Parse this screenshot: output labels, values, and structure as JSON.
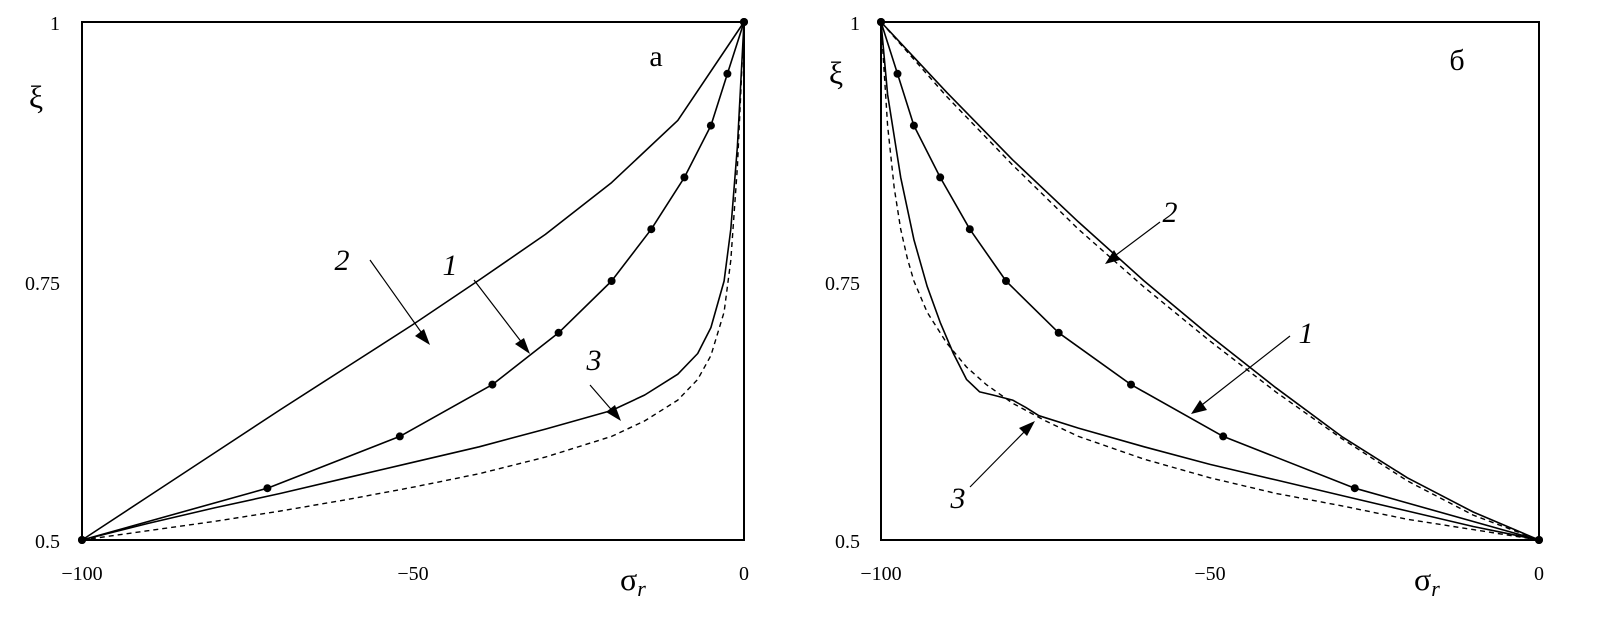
{
  "chart_data": [
    {
      "type": "line",
      "panel_label": "а",
      "xlabel": "σ",
      "xlabel_sub": "r",
      "ylabel": "ξ",
      "xlim": [
        -100,
        0
      ],
      "ylim": [
        0.5,
        1
      ],
      "x_ticks": [
        "−100",
        "−50",
        "0"
      ],
      "y_ticks": [
        "0.5",
        "0.75",
        "1"
      ],
      "grid": false,
      "series": [
        {
          "name": "2",
          "style": "solid",
          "markers": false,
          "x": [
            -100,
            -90,
            -80,
            -70,
            -60,
            -50,
            -40,
            -30,
            -20,
            -10,
            0
          ],
          "y": [
            0.5,
            0.542,
            0.584,
            0.626,
            0.667,
            0.708,
            0.751,
            0.795,
            0.845,
            0.905,
            1.0
          ]
        },
        {
          "name": "1",
          "style": "solid",
          "markers": true,
          "x": [
            -100,
            -72,
            -52,
            -38,
            -28,
            -20,
            -14,
            -9,
            -5,
            -2.5,
            0
          ],
          "y": [
            0.5,
            0.55,
            0.6,
            0.65,
            0.7,
            0.75,
            0.8,
            0.85,
            0.9,
            0.95,
            1.0
          ]
        },
        {
          "name": "3",
          "style": "solid",
          "markers": false,
          "x": [
            -100,
            -90,
            -80,
            -70,
            -60,
            -50,
            -40,
            -30,
            -20,
            -15,
            -10,
            -7,
            -5,
            -3,
            -2,
            -1,
            0
          ],
          "y": [
            0.5,
            0.516,
            0.531,
            0.545,
            0.56,
            0.575,
            0.59,
            0.607,
            0.625,
            0.64,
            0.66,
            0.68,
            0.705,
            0.75,
            0.8,
            0.88,
            1.0
          ]
        },
        {
          "name": "",
          "style": "dashed",
          "markers": false,
          "x": [
            -100,
            -90,
            -80,
            -70,
            -60,
            -50,
            -40,
            -30,
            -20,
            -15,
            -10,
            -7,
            -5,
            -3,
            -2,
            -1,
            0
          ],
          "y": [
            0.5,
            0.509,
            0.518,
            0.528,
            0.539,
            0.551,
            0.564,
            0.58,
            0.6,
            0.615,
            0.635,
            0.655,
            0.678,
            0.72,
            0.77,
            0.86,
            1.0
          ]
        }
      ],
      "annotations": [
        {
          "text": "2",
          "series": "2"
        },
        {
          "text": "1",
          "series": "1"
        },
        {
          "text": "3",
          "series": "3"
        }
      ]
    },
    {
      "type": "line",
      "panel_label": "б",
      "xlabel": "σ",
      "xlabel_sub": "r",
      "ylabel": "ξ",
      "xlim": [
        -100,
        0
      ],
      "ylim": [
        0.5,
        1
      ],
      "x_ticks": [
        "−100",
        "−50",
        "0"
      ],
      "y_ticks": [
        "0.5",
        "0.75",
        "1"
      ],
      "grid": false,
      "series": [
        {
          "name": "2",
          "style": "solid",
          "markers": false,
          "x": [
            -100,
            -90,
            -80,
            -70,
            -60,
            -50,
            -40,
            -30,
            -20,
            -10,
            0
          ],
          "y": [
            1.0,
            0.932,
            0.867,
            0.807,
            0.75,
            0.697,
            0.647,
            0.6,
            0.56,
            0.527,
            0.5
          ]
        },
        {
          "name": "",
          "style": "dashed",
          "markers": false,
          "x": [
            -100,
            -90,
            -80,
            -70,
            -60,
            -50,
            -40,
            -30,
            -20,
            -10,
            0
          ],
          "y": [
            1.0,
            0.928,
            0.862,
            0.8,
            0.744,
            0.692,
            0.643,
            0.598,
            0.557,
            0.524,
            0.5
          ]
        },
        {
          "name": "1",
          "style": "solid",
          "markers": true,
          "x": [
            -100,
            -97.5,
            -95,
            -91,
            -86.5,
            -81,
            -73,
            -62,
            -48,
            -28,
            0
          ],
          "y": [
            1.0,
            0.95,
            0.9,
            0.85,
            0.8,
            0.75,
            0.7,
            0.65,
            0.6,
            0.55,
            0.5
          ]
        },
        {
          "name": "3",
          "style": "solid",
          "markers": false,
          "x": [
            -100,
            -99,
            -97,
            -95,
            -93,
            -91,
            -89,
            -87,
            -85,
            -83,
            -80,
            -78,
            -76,
            -70,
            -60,
            -50,
            -40,
            -30,
            -20,
            -10,
            0
          ],
          "y": [
            1.0,
            0.93,
            0.85,
            0.79,
            0.745,
            0.71,
            0.68,
            0.655,
            0.643,
            0.64,
            0.635,
            0.628,
            0.62,
            0.608,
            0.59,
            0.573,
            0.558,
            0.543,
            0.528,
            0.513,
            0.5
          ]
        },
        {
          "name": "",
          "style": "dashed",
          "markers": false,
          "x": [
            -100,
            -99,
            -98,
            -97,
            -96,
            -95,
            -93,
            -90,
            -87,
            -84,
            -80,
            -75,
            -70,
            -60,
            -50,
            -40,
            -30,
            -20,
            -10,
            0
          ],
          "y": [
            1.0,
            0.9,
            0.84,
            0.8,
            0.772,
            0.75,
            0.72,
            0.69,
            0.667,
            0.65,
            0.632,
            0.615,
            0.6,
            0.578,
            0.56,
            0.545,
            0.533,
            0.52,
            0.51,
            0.5
          ]
        }
      ],
      "annotations": [
        {
          "text": "2",
          "series": "2"
        },
        {
          "text": "1",
          "series": "1"
        },
        {
          "text": "3",
          "series": "3"
        }
      ]
    }
  ]
}
